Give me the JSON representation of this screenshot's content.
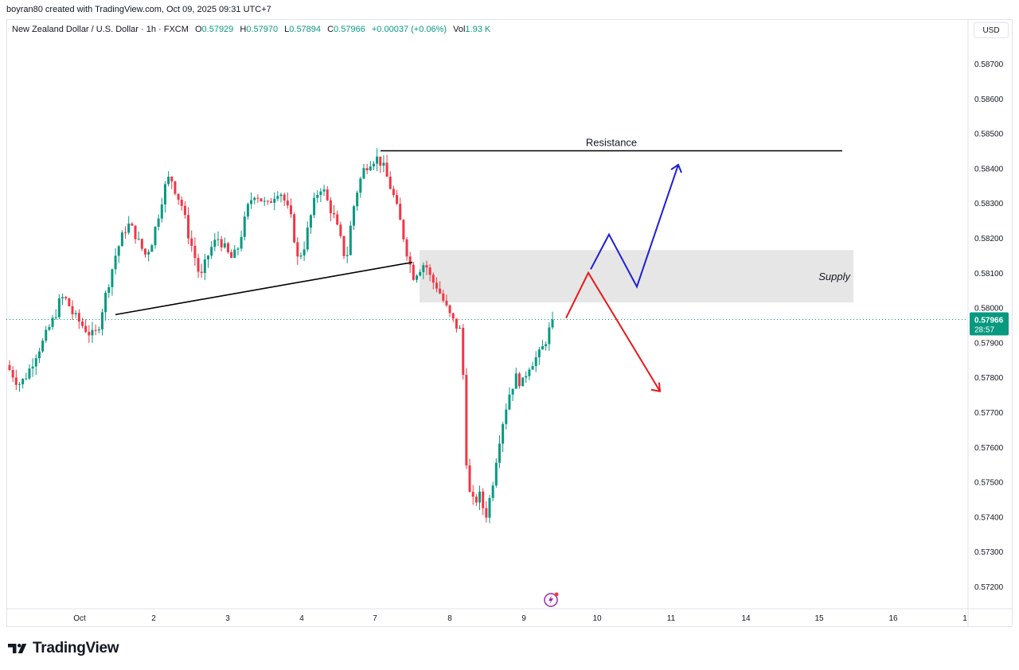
{
  "attribution": "boyran80 created with TradingView.com, Oct 09, 2025 09:31 UTC+7",
  "legend": {
    "pair": "New Zealand Dollar / U.S. Dollar · 1h · FXCM",
    "o_label": "O",
    "o_value": "0.57929",
    "h_label": "H",
    "h_value": "0.57970",
    "l_label": "L",
    "l_value": "0.57894",
    "c_label": "C",
    "c_value": "0.57966",
    "change": "+0.00037 (+0.06%)",
    "vol_label": "Vol",
    "vol_value": "1.93 K"
  },
  "currency": "USD",
  "price_label": {
    "price": "0.57966",
    "countdown": "28:57",
    "color": "#089981"
  },
  "brand": {
    "name": "TradingView",
    "icon": "tradingview-logo-icon"
  },
  "colors": {
    "up": "#089981",
    "down": "#f23645",
    "blue_path": "#1f1fd6",
    "red_path": "#e8171b",
    "zone": "#e6e6e6"
  },
  "chart_data": {
    "type": "candlestick",
    "symbol": "New Zealand Dollar / U.S. Dollar",
    "interval": "1h",
    "ylim": [
      0.5715,
      0.588
    ],
    "y_ticks": [
      "0.58700",
      "0.58600",
      "0.58500",
      "0.58400",
      "0.58300",
      "0.58200",
      "0.58100",
      "0.58000",
      "0.57900",
      "0.57800",
      "0.57700",
      "0.57600",
      "0.57500",
      "0.57400",
      "0.57300",
      "0.57200"
    ],
    "x_ticks": [
      "Oct",
      "2",
      "3",
      "4",
      "7",
      "8",
      "9",
      "10",
      "11",
      "14",
      "15",
      "16",
      "1"
    ],
    "last_price": 0.57966,
    "close_path": [
      0.57835,
      0.5781,
      0.5778,
      0.57795,
      0.5783,
      0.5787,
      0.579,
      0.5794,
      0.57975,
      0.5803,
      0.5802,
      0.5798,
      0.5796,
      0.5794,
      0.5792,
      0.5793,
      0.5801,
      0.5808,
      0.5815,
      0.582,
      0.5824,
      0.5822,
      0.5818,
      0.5815,
      0.5819,
      0.5826,
      0.5834,
      0.5838,
      0.5833,
      0.5829,
      0.5821,
      0.5815,
      0.5808,
      0.5814,
      0.5818,
      0.582,
      0.5817,
      0.5814,
      0.5816,
      0.5823,
      0.583,
      0.5833,
      0.5831,
      0.5829,
      0.5832,
      0.5834,
      0.583,
      0.5825,
      0.5814,
      0.5817,
      0.5825,
      0.5832,
      0.5835,
      0.583,
      0.5826,
      0.582,
      0.5813,
      0.5827,
      0.5835,
      0.584,
      0.5842,
      0.5843,
      0.5841,
      0.5836,
      0.5831,
      0.5824,
      0.5816,
      0.5809,
      0.5811,
      0.5813,
      0.5808,
      0.5806,
      0.5802,
      0.5798,
      0.5795,
      0.5793,
      0.5748,
      0.5744,
      0.5746,
      0.574,
      0.5748,
      0.576,
      0.5769,
      0.5776,
      0.578,
      0.5778,
      0.5783,
      0.5785,
      0.5787,
      0.5791,
      0.57966
    ],
    "resistance": 0.5845,
    "resistance_range": [
      "Oct 7",
      "Oct 15"
    ],
    "supply_zone": [
      0.58015,
      0.58165
    ],
    "supply_range": [
      "Oct 8",
      "Oct 15"
    ],
    "trendline": [
      {
        "x": "Oct 1",
        "y": 0.5798
      },
      {
        "x": "Oct 7",
        "y": 0.5813
      }
    ],
    "blue_projection": [
      0.5811,
      0.5821,
      0.5806,
      0.5841
    ],
    "red_projection": [
      0.5797,
      0.581,
      0.5776
    ],
    "annotations": [
      "Resistance",
      "Supply"
    ]
  }
}
